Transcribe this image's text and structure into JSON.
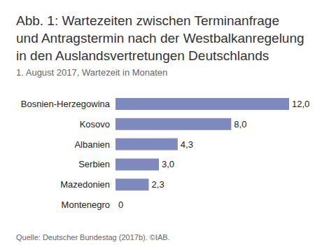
{
  "chart_data": {
    "type": "bar",
    "title": "Abb. 1: Wartezeiten zwischen Terminanfrage\nund Antragstermin nach der Westbalkanregelung\nin den Auslandsvertretungen Deutschlands",
    "subtitle": "1. August 2017, Wartezeit in Monaten",
    "source": "Quelle: Deutscher Bundestag (2017b). ©IAB.",
    "categories": [
      "Bosnien-Herzegowina",
      "Kosovo",
      "Albanien",
      "Serbien",
      "Mazedonien",
      "Montenegro"
    ],
    "values": [
      12.0,
      8.0,
      4.3,
      3.0,
      2.3,
      0
    ],
    "value_labels": [
      "12,0",
      "8,0",
      "4,3",
      "3,0",
      "2,3",
      "0"
    ],
    "color": "#7e89bd",
    "orientation": "horizontal",
    "xlim": [
      0,
      12
    ],
    "grid": false,
    "data_labels": true,
    "tick_labels": "y"
  }
}
